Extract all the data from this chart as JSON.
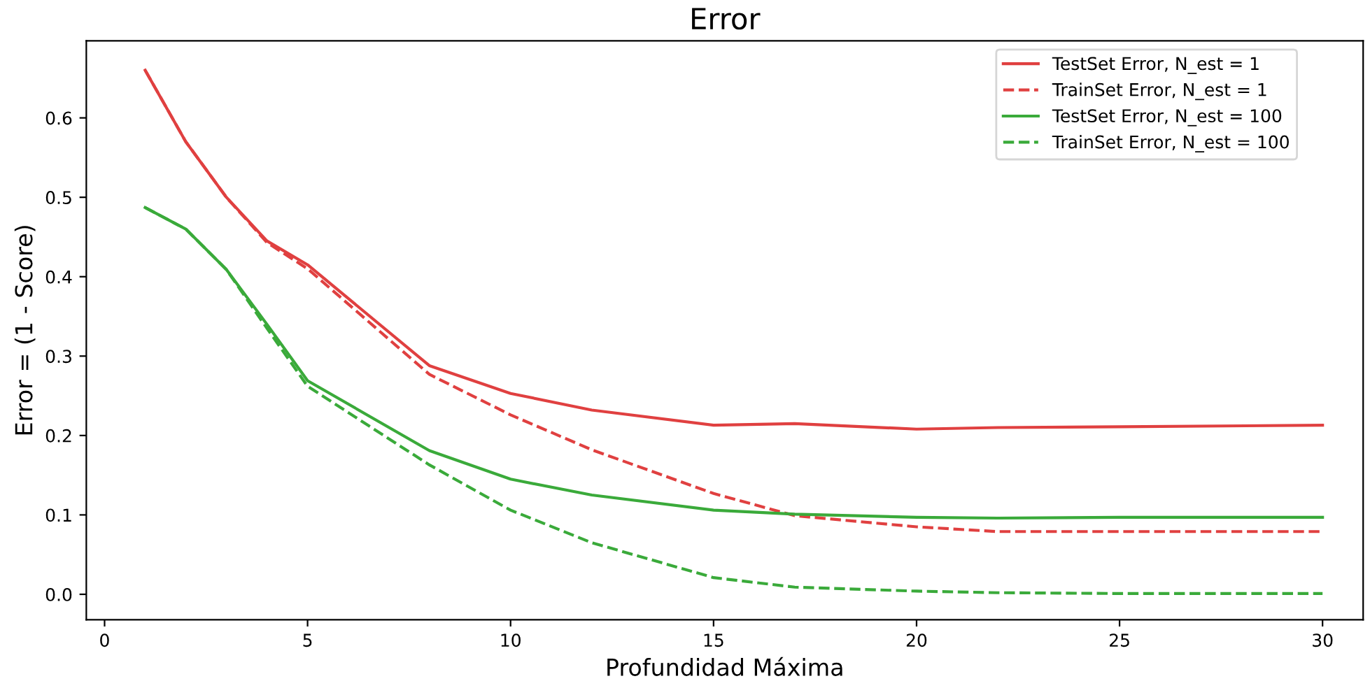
{
  "chart_data": {
    "type": "line",
    "title": "Error",
    "xlabel": "Profundidad Máxima",
    "ylabel": "Error = (1 - Score)",
    "x": [
      1,
      2,
      3,
      4,
      5,
      8,
      10,
      12,
      15,
      17,
      20,
      22,
      25,
      30
    ],
    "series": [
      {
        "name": "TestSet Error, N_est = 1",
        "color": "#e04040",
        "line_style": "solid",
        "values": [
          0.66,
          0.57,
          0.5,
          0.445,
          0.415,
          0.288,
          0.253,
          0.232,
          0.213,
          0.215,
          0.208,
          0.21,
          0.211,
          0.213
        ]
      },
      {
        "name": "TrainSet Error, N_est = 1",
        "color": "#e04040",
        "line_style": "dashed",
        "values": [
          0.66,
          0.57,
          0.5,
          0.443,
          0.41,
          0.277,
          0.226,
          0.182,
          0.127,
          0.099,
          0.085,
          0.079,
          0.079,
          0.079
        ]
      },
      {
        "name": "TestSet Error, N_est = 100",
        "color": "#3aaa3a",
        "line_style": "solid",
        "values": [
          0.487,
          0.46,
          0.409,
          0.34,
          0.269,
          0.181,
          0.145,
          0.125,
          0.106,
          0.101,
          0.097,
          0.096,
          0.097,
          0.097
        ]
      },
      {
        "name": "TrainSet Error, N_est = 100",
        "color": "#3aaa3a",
        "line_style": "dashed",
        "values": [
          0.487,
          0.46,
          0.409,
          0.335,
          0.262,
          0.163,
          0.106,
          0.065,
          0.021,
          0.009,
          0.004,
          0.002,
          0.001,
          0.001
        ]
      }
    ],
    "xlim": [
      -0.45,
      31.0
    ],
    "ylim": [
      -0.032,
      0.697
    ],
    "xticks": [
      0,
      5,
      10,
      15,
      20,
      25,
      30
    ],
    "yticks": [
      {
        "value": 0,
        "label": "0.0"
      },
      0.1,
      0.2,
      0.3,
      0.4,
      0.5,
      0.6
    ],
    "grid": false,
    "legend": "top right",
    "marker": "none"
  }
}
